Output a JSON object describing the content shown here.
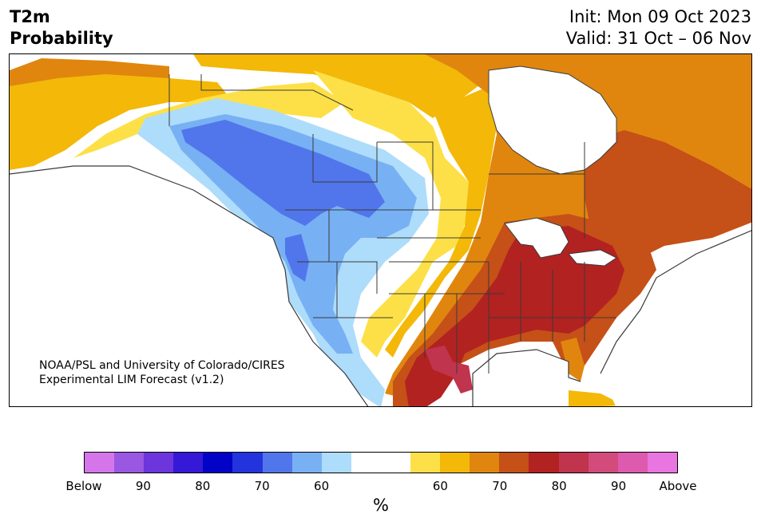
{
  "header": {
    "variable": "T2m",
    "kind": "Probability",
    "init": "Init: Mon 09 Oct 2023",
    "valid": "Valid: 31 Oct – 06 Nov"
  },
  "credit": {
    "line1": "NOAA/PSL and University of Colorado/CIRES",
    "line2": "Experimental LIM Forecast (v1.2)"
  },
  "colorbar": {
    "colors": [
      "#d476ea",
      "#9a57e2",
      "#6c36dc",
      "#3519d6",
      "#0303c8",
      "#2334dd",
      "#5176eb",
      "#77b1f4",
      "#aedcfb",
      "#ffffff",
      "#ffffff",
      "#fde047",
      "#f3b808",
      "#e0860f",
      "#c55018",
      "#b12221",
      "#c0344d",
      "#d24b7b",
      "#de5aae",
      "#e875e0"
    ],
    "tick_labels": [
      "Below",
      "90",
      "80",
      "70",
      "60",
      "60",
      "70",
      "80",
      "90",
      "Above"
    ],
    "unit": "%"
  },
  "map": {
    "ocean_color": "#ffffff",
    "border_color": "#3a3a3a"
  }
}
